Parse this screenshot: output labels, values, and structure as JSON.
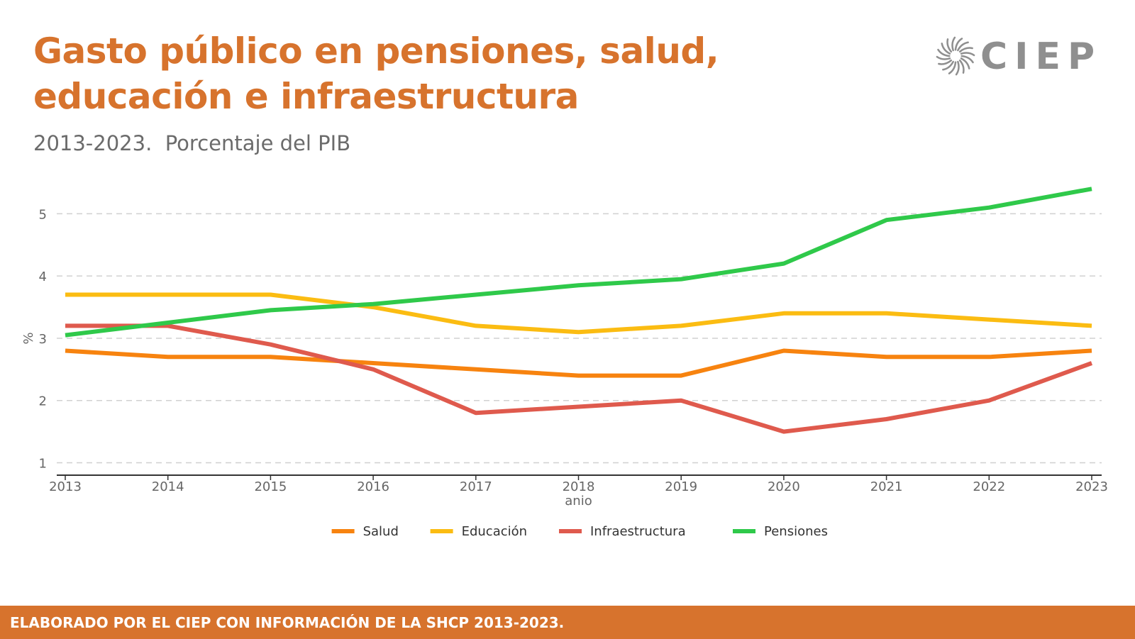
{
  "header": {
    "title": "Gasto público en pensiones, salud, educación e infraestructura",
    "subtitle": "2013-2023.  Porcentaje del PIB"
  },
  "logo": {
    "text": "CIEP",
    "icon": "sunburst-icon",
    "color": "#8f8f8f"
  },
  "footer": {
    "text": "ELABORADO POR EL CIEP CON INFORMACIÓN DE LA SHCP 2013-2023.",
    "background": "#D7732D"
  },
  "colors": {
    "title": "#D7732D",
    "grid": "#d0d0d0",
    "axis": "#333333",
    "tick_text": "#666666"
  },
  "chart_data": {
    "type": "line",
    "title": "",
    "xlabel": "anio",
    "ylabel": "%",
    "x": [
      2013,
      2014,
      2015,
      2016,
      2017,
      2018,
      2019,
      2020,
      2021,
      2022,
      2023
    ],
    "xlim": [
      2013,
      2023
    ],
    "ylim": [
      0.8,
      5.7
    ],
    "yticks": [
      1,
      2,
      3,
      4,
      5
    ],
    "grid": "horizontal-dashed",
    "legend_position": "bottom-center",
    "series": [
      {
        "name": "Salud",
        "color": "#F7830F",
        "values": [
          2.8,
          2.7,
          2.7,
          2.6,
          2.5,
          2.4,
          2.4,
          2.8,
          2.7,
          2.7,
          2.8
        ]
      },
      {
        "name": "Educación",
        "color": "#FBBC12",
        "values": [
          3.7,
          3.7,
          3.7,
          3.5,
          3.2,
          3.1,
          3.2,
          3.4,
          3.4,
          3.3,
          3.2
        ]
      },
      {
        "name": "Infraestructura",
        "color": "#DF5A4D",
        "values": [
          3.2,
          3.2,
          2.9,
          2.5,
          1.8,
          1.9,
          2.0,
          1.5,
          1.7,
          2.0,
          2.6
        ]
      },
      {
        "name": "Pensiones",
        "color": "#2FC94A",
        "values": [
          3.05,
          3.25,
          3.45,
          3.55,
          3.7,
          3.85,
          3.95,
          4.2,
          4.9,
          5.1,
          5.4
        ]
      }
    ]
  }
}
